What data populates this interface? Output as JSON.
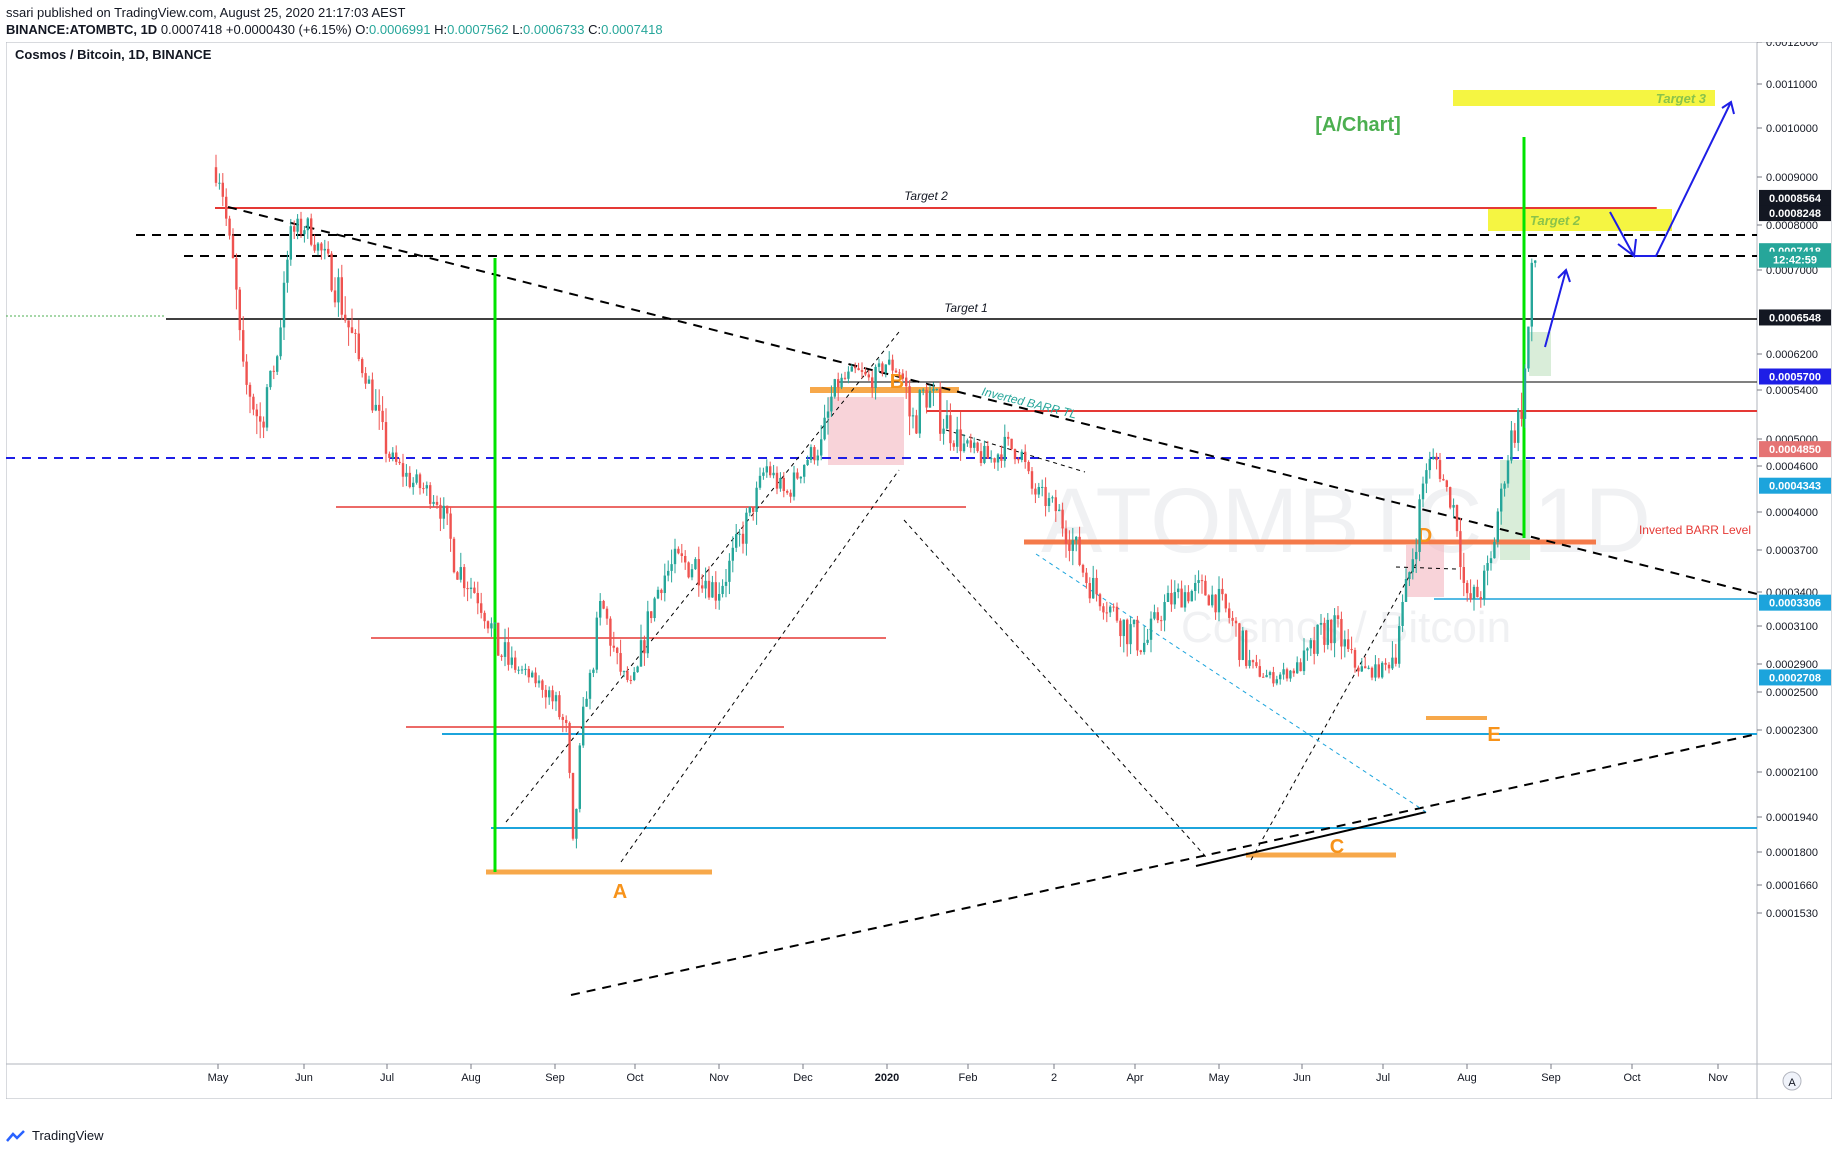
{
  "header": {
    "publisher": "ssari published on TradingView.com, August 25, 2020 21:17:03 AEST",
    "symbol": "BINANCE:ATOMBTC, 1D",
    "last": "0.0007418",
    "change": "+0.0000430 (+6.15%)",
    "o_label": "O:",
    "o": "0.0006991",
    "h_label": "H:",
    "h": "0.0007562",
    "l_label": "L:",
    "l": "0.0006733",
    "c_label": "C:",
    "c": "0.0007418"
  },
  "chart_data": {
    "type": "candlestick",
    "title": "Cosmos / Bitcoin, 1D, BINANCE",
    "watermark_main": "ATOMBTC, 1D",
    "watermark_sub": "Cosmos / Bitcoin",
    "brand_label": "[A/Chart]",
    "x_ticks": [
      "May",
      "Jun",
      "Jul",
      "Aug",
      "Sep",
      "Oct",
      "Nov",
      "Dec",
      "2020",
      "Feb",
      "2",
      "Apr",
      "May",
      "Jun",
      "Jul",
      "Aug",
      "Sep",
      "Oct",
      "Nov"
    ],
    "y_ticks": [
      "0.0012000",
      "0.0011000",
      "0.0010000",
      "0.0009000",
      "0.0008000",
      "0.0007000",
      "0.0006200",
      "0.0005400",
      "0.0005000",
      "0.0004600",
      "0.0004000",
      "0.0003700",
      "0.0003400",
      "0.0003100",
      "0.0002900",
      "0.0002500",
      "0.0002300",
      "0.0002100",
      "0.0001940",
      "0.0001800",
      "0.0001660",
      "0.0001530"
    ],
    "price_labels": [
      {
        "text": "0.0008564",
        "value": 0.0008564,
        "style": "dark"
      },
      {
        "text": "0.0008248",
        "value": 0.0008248,
        "style": "dark"
      },
      {
        "text": "0.0007418",
        "value": 0.0007418,
        "style": "green"
      },
      {
        "text": "12:42:59",
        "value": 0.000723,
        "style": "green"
      },
      {
        "text": "0.0006548",
        "value": 0.0006548,
        "style": "dark"
      },
      {
        "text": "0.0005700",
        "value": 0.00057,
        "style": "blue"
      },
      {
        "text": "0.0004850",
        "value": 0.000485,
        "style": "red"
      },
      {
        "text": "0.0004343",
        "value": 0.0004343,
        "style": "cyan"
      },
      {
        "text": "0.0003306",
        "value": 0.0003306,
        "style": "cyan"
      },
      {
        "text": "0.0002708",
        "value": 0.0002708,
        "style": "cyan"
      }
    ],
    "annotations": {
      "target1": "Target 1",
      "target2_top": "Target 2",
      "target2_box": "Target 2",
      "target3_box": "Target 3",
      "inverted_tl": "Inverted BARR TL",
      "inverted_level": "Inverted BARR Level",
      "point_a": "A",
      "point_b": "B",
      "point_c": "C",
      "point_d": "D",
      "point_e": "E"
    },
    "colors": {
      "up": "#26a69a",
      "down": "#ef5350",
      "target_box": "#f5f542",
      "orange": "#f7a84a",
      "cyan": "#1ca4dc",
      "green_bar": "#00e400",
      "blue_dash": "#1e1ee6",
      "red_line": "#e53935"
    }
  },
  "footer": {
    "brand": "TradingView"
  }
}
